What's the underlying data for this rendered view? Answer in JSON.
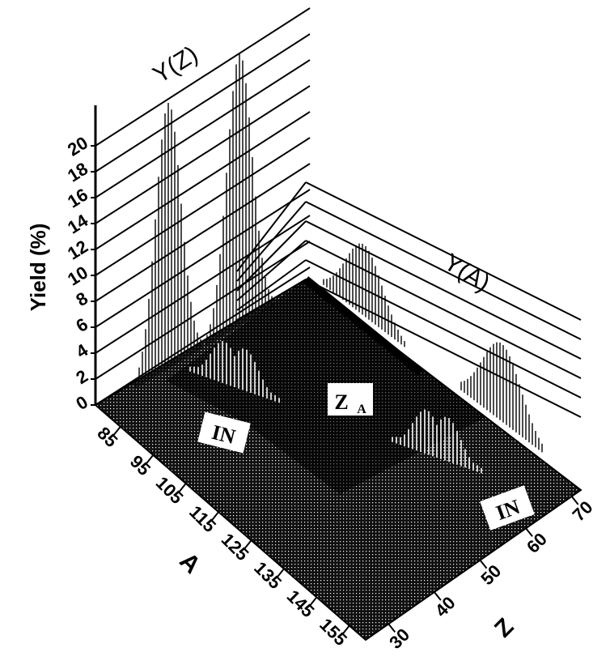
{
  "chart_data": {
    "type": "surface3d",
    "zlabel": "Yield (%)",
    "xlabel": "A",
    "ylabel": "Z",
    "zticks": [
      0,
      2,
      4,
      6,
      8,
      10,
      12,
      14,
      16,
      18,
      20
    ],
    "xticks": [
      85,
      95,
      105,
      115,
      125,
      135,
      145,
      155
    ],
    "yticks": [
      30,
      40,
      50,
      60,
      70
    ],
    "xlim": [
      80,
      160
    ],
    "ylim": [
      25,
      72
    ],
    "zlim": [
      0,
      21
    ],
    "projection_labels": {
      "z_projection": "Y(Z)",
      "a_projection": "Y(A)"
    },
    "surface_labels": [
      "IN",
      "Z",
      "A",
      "IN"
    ],
    "projection_yield_z": [
      {
        "z": 35,
        "peak": 20.5,
        "width": 1.3
      },
      {
        "z": 55,
        "peak": 21.0,
        "width": 1.3
      }
    ],
    "projection_yield_a": [
      {
        "a": 98,
        "peak": 5.5,
        "width": 3.2
      },
      {
        "a": 138,
        "peak": 6.0,
        "width": 3.4
      }
    ],
    "surface_peaks": [
      {
        "a": 102,
        "z": 42,
        "peak": 4.0
      },
      {
        "a": 132,
        "z": 52,
        "peak": 4.2
      }
    ],
    "colors": {
      "surface": "#000000",
      "grid": "#ffffff",
      "ink": "#000000"
    }
  }
}
